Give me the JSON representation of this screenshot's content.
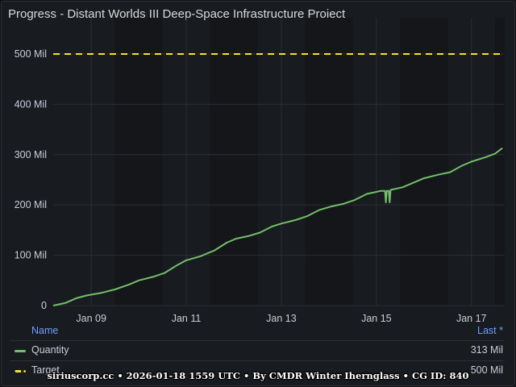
{
  "panel": {
    "title": "Progress - Distant Worlds III Deep-Space Infrastructure Project"
  },
  "colors": {
    "quantity": "#73bf69",
    "target": "#fade2a",
    "grid": "#2b2e33",
    "night_band": "#141619",
    "legend_header": "#6e9fff"
  },
  "chart_data": {
    "type": "line",
    "title": "Progress - Distant Worlds III Deep-Space Infrastructure Project",
    "xlabel": "",
    "ylabel": "",
    "x_unit": "date (2026, Jan)",
    "x_range": [
      8.2,
      17.7
    ],
    "ylim": [
      0,
      540
    ],
    "y_ticks": [
      0,
      100,
      200,
      300,
      400,
      500
    ],
    "y_tick_labels": [
      "0",
      "100 Mil",
      "200 Mil",
      "300 Mil",
      "400 Mil",
      "500 Mil"
    ],
    "x_ticks": [
      9,
      11,
      13,
      15,
      17
    ],
    "x_tick_labels": [
      "Jan 09",
      "Jan 11",
      "Jan 13",
      "Jan 15",
      "Jan 17"
    ],
    "grid": true,
    "legend_placement": "bottom",
    "series": [
      {
        "name": "Quantity",
        "style": "solid",
        "x": [
          8.2,
          8.45,
          8.7,
          8.9,
          9.2,
          9.5,
          9.8,
          10.0,
          10.3,
          10.55,
          10.8,
          11.0,
          11.3,
          11.6,
          11.85,
          12.05,
          12.3,
          12.55,
          12.8,
          13.0,
          13.3,
          13.55,
          13.8,
          14.05,
          14.3,
          14.55,
          14.8,
          14.95,
          15.1,
          15.18,
          15.2,
          15.22,
          15.26,
          15.28,
          15.3,
          15.55,
          15.8,
          16.0,
          16.3,
          16.55,
          16.8,
          17.0,
          17.3,
          17.5,
          17.65
        ],
        "values": [
          0,
          5,
          15,
          20,
          25,
          32,
          42,
          50,
          57,
          65,
          80,
          90,
          98,
          110,
          125,
          133,
          138,
          145,
          157,
          163,
          170,
          178,
          190,
          197,
          202,
          210,
          222,
          225,
          228,
          228,
          205,
          228,
          228,
          205,
          230,
          235,
          245,
          253,
          260,
          265,
          278,
          286,
          295,
          302,
          313
        ]
      },
      {
        "name": "Target",
        "style": "dashed",
        "x": [
          8.2,
          17.7
        ],
        "values": [
          500,
          500
        ]
      }
    ]
  },
  "legend": {
    "header_name": "Name",
    "header_last": "Last *",
    "rows": [
      {
        "name": "Quantity",
        "last": "313 Mil"
      },
      {
        "name": "Target",
        "last": "500 Mil"
      }
    ]
  },
  "footer": {
    "text": "siriuscorp.cc • 2026-01-18 1559 UTC • By CMDR Winter Ihernglass • CG ID: 840"
  }
}
